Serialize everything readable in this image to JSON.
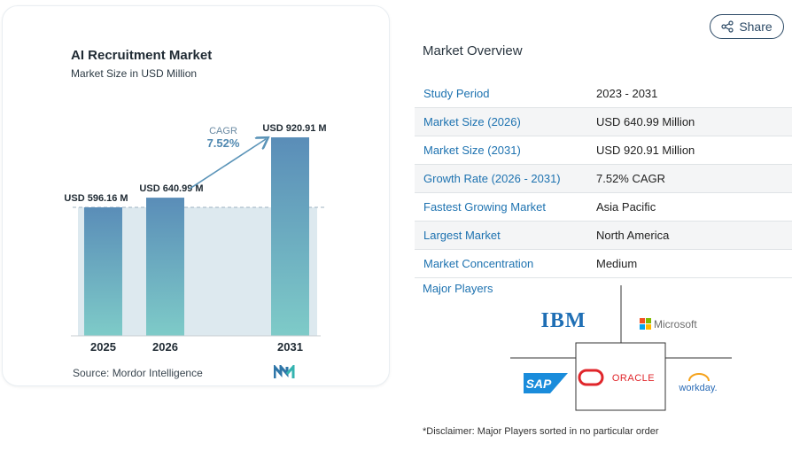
{
  "chart_data": {
    "type": "bar",
    "title": "AI Recruitment Market",
    "subtitle": "Market Size in USD Million",
    "categories": [
      "2025",
      "2026",
      "2031"
    ],
    "values": [
      596.16,
      640.99,
      920.91
    ],
    "value_labels": [
      "USD 596.16 M",
      "USD 640.99 M",
      "USD 920.91 M"
    ],
    "cagr_label": "CAGR",
    "cagr_value": "7.52%",
    "ylim": [
      0,
      1000
    ],
    "grid": false,
    "colors": {
      "bar_top": "#5a8db8",
      "bar_bottom": "#7ecbc8",
      "area": "#dde9ef",
      "arrow": "#5b94b8",
      "dashed": "#9fb3c2"
    }
  },
  "source": "Source:  Mordor Intelligence",
  "share": {
    "label": "Share",
    "icon": "share-icon"
  },
  "overview": {
    "title": "Market Overview",
    "rows": [
      {
        "label": "Study Period",
        "value": "2023 - 2031"
      },
      {
        "label": "Market Size (2026)",
        "value": "USD 640.99 Million"
      },
      {
        "label": "Market Size (2031)",
        "value": "USD 920.91 Million"
      },
      {
        "label": "Growth Rate (2026 - 2031)",
        "value": "7.52% CAGR"
      },
      {
        "label": "Fastest Growing Market",
        "value": "Asia Pacific"
      },
      {
        "label": "Largest Market",
        "value": "North America"
      },
      {
        "label": "Market Concentration",
        "value": "Medium"
      }
    ]
  },
  "players": {
    "label": "Major Players",
    "logos": {
      "ibm": "IBM",
      "microsoft": "Microsoft",
      "sap": "SAP",
      "oracle": "ORACLE",
      "workday": "workday."
    }
  },
  "disclaimer": "*Disclaimer: Major Players sorted in no particular order"
}
